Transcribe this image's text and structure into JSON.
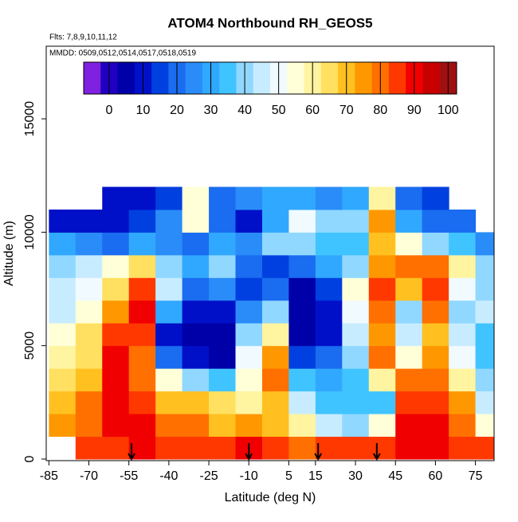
{
  "chart_data": {
    "type": "heatmap",
    "title": "ATOM4 Northbound RH_GEOS5",
    "subtitle": "Flts: 7,8,9,10,11,12",
    "annotation": "MMDD: 0509,0512,0514,0517,0518,0519",
    "x_label": "Latitude (deg N)",
    "y_label": "Altitude (m)",
    "xlim": [
      -86,
      82
    ],
    "ylim": [
      -70,
      18200
    ],
    "xticks": [
      -85,
      -70,
      -55,
      -40,
      -25,
      -10,
      5,
      15,
      30,
      45,
      60,
      75
    ],
    "yticks": [
      0,
      5000,
      10000,
      15000
    ],
    "x": [
      -80,
      -70,
      -60,
      -50,
      -40,
      -30,
      -20,
      -10,
      0,
      10,
      20,
      30,
      40,
      50,
      60,
      70,
      80
    ],
    "y": [
      500,
      1500,
      2500,
      3500,
      4500,
      5500,
      6500,
      7500,
      8500,
      9500,
      10500,
      11500
    ],
    "z": [
      [
        null,
        85,
        85,
        88,
        85,
        85,
        85,
        88,
        85,
        82,
        85,
        85,
        85,
        88,
        88,
        85,
        85
      ],
      [
        75,
        82,
        90,
        88,
        78,
        80,
        72,
        75,
        68,
        60,
        45,
        40,
        55,
        90,
        90,
        80,
        55
      ],
      [
        70,
        78,
        88,
        85,
        68,
        70,
        65,
        60,
        70,
        45,
        35,
        35,
        35,
        85,
        85,
        75,
        45
      ],
      [
        65,
        70,
        88,
        82,
        55,
        40,
        35,
        55,
        80,
        35,
        30,
        35,
        60,
        82,
        80,
        60,
        40
      ],
      [
        60,
        65,
        88,
        80,
        20,
        10,
        5,
        50,
        75,
        15,
        20,
        40,
        80,
        55,
        75,
        50,
        35
      ],
      [
        55,
        65,
        85,
        85,
        10,
        5,
        5,
        40,
        60,
        5,
        10,
        45,
        75,
        45,
        70,
        45,
        35
      ],
      [
        45,
        55,
        75,
        90,
        30,
        10,
        10,
        25,
        40,
        5,
        10,
        50,
        80,
        40,
        80,
        40,
        45
      ],
      [
        45,
        50,
        65,
        85,
        45,
        20,
        25,
        15,
        20,
        5,
        15,
        55,
        85,
        70,
        85,
        50,
        40
      ],
      [
        40,
        45,
        55,
        65,
        40,
        30,
        40,
        20,
        15,
        20,
        30,
        40,
        75,
        80,
        80,
        60,
        40
      ],
      [
        30,
        25,
        20,
        30,
        25,
        20,
        30,
        25,
        40,
        40,
        35,
        35,
        70,
        55,
        40,
        35,
        25
      ],
      [
        10,
        10,
        10,
        15,
        25,
        55,
        20,
        10,
        30,
        50,
        40,
        40,
        75,
        30,
        20,
        20,
        null
      ],
      [
        null,
        null,
        10,
        10,
        15,
        55,
        20,
        25,
        30,
        30,
        25,
        30,
        60,
        20,
        15,
        null,
        null
      ]
    ],
    "colorbar": {
      "clim": [
        -7.5,
        102.5
      ],
      "ticks": [
        0,
        10,
        20,
        30,
        40,
        50,
        60,
        70,
        80,
        90,
        100
      ],
      "colors": [
        "#8020e0",
        "#2000c0",
        "#0000a8",
        "#0010c8",
        "#0040e0",
        "#1a6cf0",
        "#2a8cf8",
        "#30a8ff",
        "#40c4ff",
        "#90d8ff",
        "#c8ecff",
        "#f0faff",
        "#ffffd8",
        "#fff4a0",
        "#ffe060",
        "#ffc020",
        "#ff9800",
        "#ff7000",
        "#ff3800",
        "#f00000",
        "#c80000",
        "#a01010"
      ]
    },
    "flight_markers": [
      -54,
      -10,
      16,
      38
    ]
  }
}
